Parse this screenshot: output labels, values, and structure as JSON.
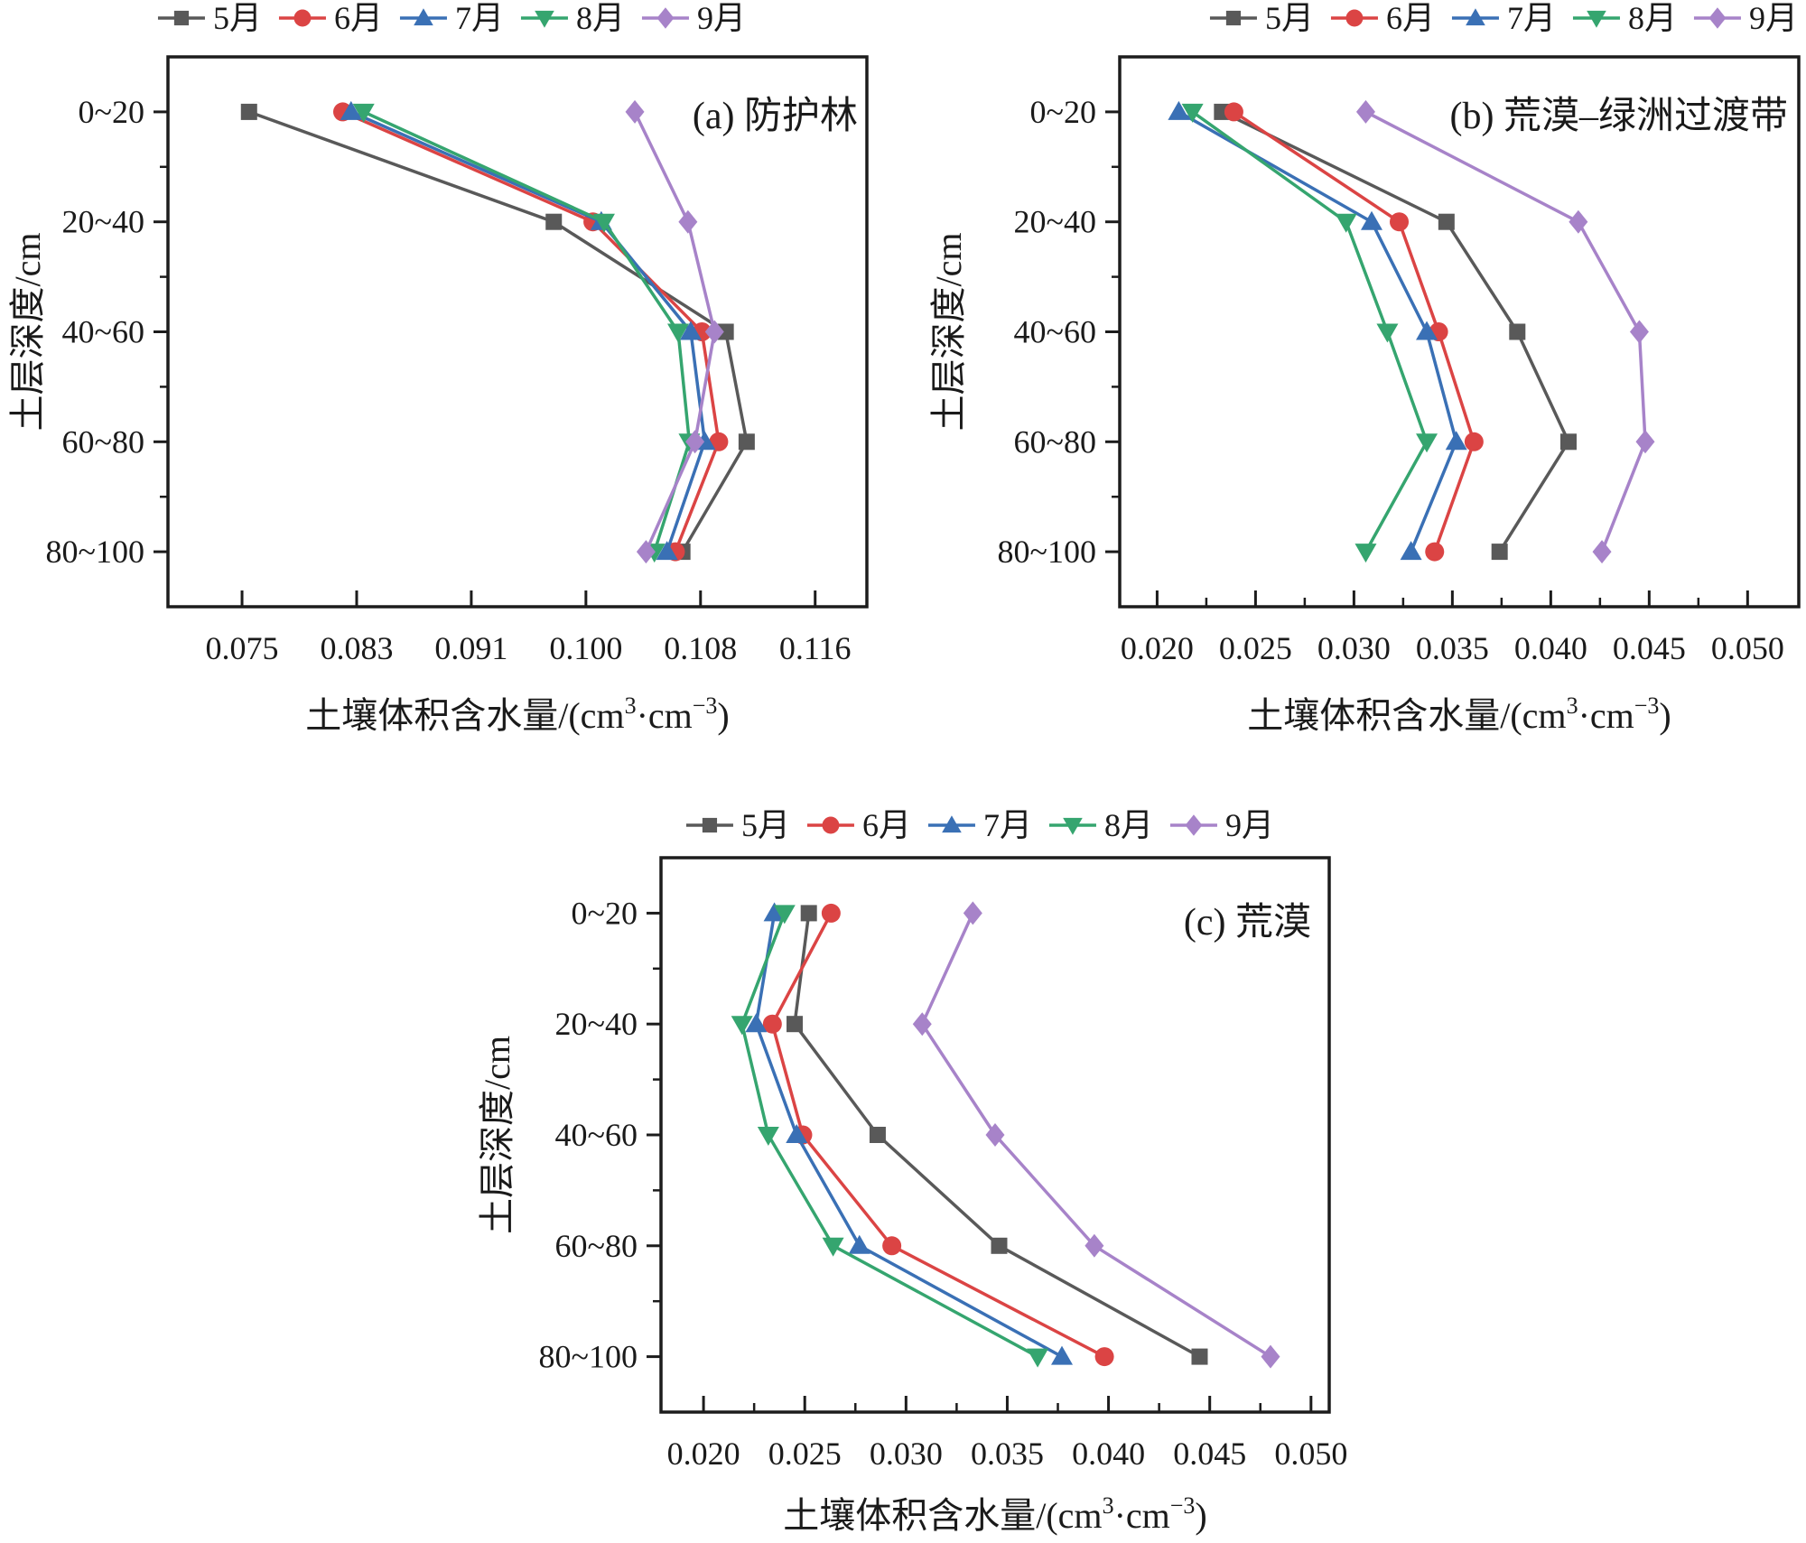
{
  "page": {
    "background": "#ffffff",
    "frame_color": "#1c1c1c",
    "text_color": "#1a1a1a"
  },
  "chart_data": [
    {
      "id": "a",
      "type": "line",
      "orientation": "horizontal-categories",
      "annotation": "(a) 防护林",
      "ylabel": "土层深度/cm",
      "xlabel": "土壤体积含水量/(cm³·cm⁻³)",
      "xlabel_parts": [
        {
          "t": "土壤体积含水量/(cm"
        },
        {
          "t": "3",
          "sup": true
        },
        {
          "t": "·cm"
        },
        {
          "t": "−3",
          "sup": true
        },
        {
          "t": ")"
        }
      ],
      "categories": [
        "0~20",
        "20~40",
        "40~60",
        "60~80",
        "80~100"
      ],
      "x_ticks": {
        "labels": [
          "0.075",
          "0.083",
          "0.091",
          "0.100",
          "0.108",
          "0.116"
        ],
        "values": [
          0.075,
          0.0832,
          0.0914,
          0.0996,
          0.1078,
          0.116
        ]
      },
      "xlim": [
        0.0697,
        0.1197
      ],
      "x_minor": false,
      "legend_position": "top",
      "grid": false,
      "series": [
        {
          "key": "m5",
          "name": "5月",
          "marker": "square",
          "color": "#595959",
          "values": [
            0.0755,
            0.0973,
            0.1096,
            0.1111,
            0.1065
          ]
        },
        {
          "key": "m6",
          "name": "6月",
          "marker": "circle",
          "color": "#DB4444",
          "values": [
            0.0822,
            0.1001,
            0.1079,
            0.1091,
            0.106
          ]
        },
        {
          "key": "m7",
          "name": "7月",
          "marker": "triangle-up",
          "color": "#3A70B5",
          "values": [
            0.0828,
            0.1007,
            0.1071,
            0.1081,
            0.1054
          ]
        },
        {
          "key": "m8",
          "name": "8月",
          "marker": "triangle-down",
          "color": "#35A56F",
          "values": [
            0.0837,
            0.1009,
            0.1062,
            0.107,
            0.1045
          ]
        },
        {
          "key": "m9",
          "name": "9月",
          "marker": "diamond",
          "color": "#A783C9",
          "values": [
            0.1031,
            0.1069,
            0.1088,
            0.1074,
            0.1039
          ]
        }
      ]
    },
    {
      "id": "b",
      "type": "line",
      "orientation": "horizontal-categories",
      "annotation": "(b) 荒漠–绿洲过渡带",
      "ylabel": "土层深度/cm",
      "xlabel": "土壤体积含水量/(cm³·cm⁻³)",
      "xlabel_parts": [
        {
          "t": "土壤体积含水量/(cm"
        },
        {
          "t": "3",
          "sup": true
        },
        {
          "t": "·cm"
        },
        {
          "t": "−3",
          "sup": true
        },
        {
          "t": ")"
        }
      ],
      "categories": [
        "0~20",
        "20~40",
        "40~60",
        "60~80",
        "80~100"
      ],
      "x_ticks": {
        "labels": [
          "0.020",
          "0.025",
          "0.030",
          "0.035",
          "0.040",
          "0.045",
          "0.050"
        ],
        "values": [
          0.02,
          0.025,
          0.03,
          0.035,
          0.04,
          0.045,
          0.05
        ]
      },
      "xlim": [
        0.0181,
        0.0526
      ],
      "x_minor": true,
      "legend_position": "top",
      "grid": false,
      "series": [
        {
          "key": "m5",
          "name": "5月",
          "marker": "square",
          "color": "#595959",
          "values": [
            0.0233,
            0.0347,
            0.0383,
            0.0409,
            0.0374
          ]
        },
        {
          "key": "m6",
          "name": "6月",
          "marker": "circle",
          "color": "#DB4444",
          "values": [
            0.0239,
            0.0323,
            0.0343,
            0.0361,
            0.0341
          ]
        },
        {
          "key": "m7",
          "name": "7月",
          "marker": "triangle-up",
          "color": "#3A70B5",
          "values": [
            0.0211,
            0.0309,
            0.0337,
            0.0352,
            0.0329
          ]
        },
        {
          "key": "m8",
          "name": "8月",
          "marker": "triangle-down",
          "color": "#35A56F",
          "values": [
            0.0218,
            0.0296,
            0.0317,
            0.0337,
            0.0306
          ]
        },
        {
          "key": "m9",
          "name": "9月",
          "marker": "diamond",
          "color": "#A783C9",
          "values": [
            0.0306,
            0.0414,
            0.0445,
            0.0448,
            0.0426
          ]
        }
      ]
    },
    {
      "id": "c",
      "type": "line",
      "orientation": "horizontal-categories",
      "annotation": "(c) 荒漠",
      "ylabel": "土层深度/cm",
      "xlabel": "土壤体积含水量/(cm³·cm⁻³)",
      "xlabel_parts": [
        {
          "t": "土壤体积含水量/(cm"
        },
        {
          "t": "3",
          "sup": true
        },
        {
          "t": "·cm"
        },
        {
          "t": "−3",
          "sup": true
        },
        {
          "t": ")"
        }
      ],
      "categories": [
        "0~20",
        "20~40",
        "40~60",
        "60~80",
        "80~100"
      ],
      "x_ticks": {
        "labels": [
          "0.020",
          "0.025",
          "0.030",
          "0.035",
          "0.040",
          "0.045",
          "0.050"
        ],
        "values": [
          0.02,
          0.025,
          0.03,
          0.035,
          0.04,
          0.045,
          0.05
        ]
      },
      "xlim": [
        0.0179,
        0.0509
      ],
      "x_minor": true,
      "legend_position": "top",
      "grid": false,
      "series": [
        {
          "key": "m5",
          "name": "5月",
          "marker": "square",
          "color": "#595959",
          "values": [
            0.0252,
            0.0245,
            0.0286,
            0.0346,
            0.0445
          ]
        },
        {
          "key": "m6",
          "name": "6月",
          "marker": "circle",
          "color": "#DB4444",
          "values": [
            0.0263,
            0.0234,
            0.0249,
            0.0293,
            0.0398
          ]
        },
        {
          "key": "m7",
          "name": "7月",
          "marker": "triangle-up",
          "color": "#3A70B5",
          "values": [
            0.0235,
            0.0226,
            0.0246,
            0.0277,
            0.0377
          ]
        },
        {
          "key": "m8",
          "name": "8月",
          "marker": "triangle-down",
          "color": "#35A56F",
          "values": [
            0.024,
            0.0219,
            0.0232,
            0.0264,
            0.0365
          ]
        },
        {
          "key": "m9",
          "name": "9月",
          "marker": "diamond",
          "color": "#A783C9",
          "values": [
            0.0333,
            0.0308,
            0.0344,
            0.0393,
            0.048
          ]
        }
      ]
    }
  ]
}
